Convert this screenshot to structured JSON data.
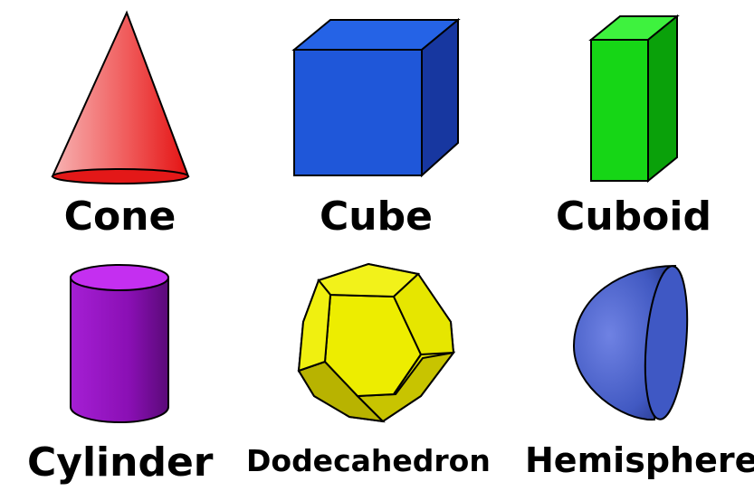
{
  "shapes": [
    {
      "id": "cone",
      "label": "Cone",
      "color": "#e8221f"
    },
    {
      "id": "cube",
      "label": "Cube",
      "color": "#1f57d6"
    },
    {
      "id": "cuboid",
      "label": "Cuboid",
      "color": "#19d219"
    },
    {
      "id": "cylinder",
      "label": "Cylinder",
      "color": "#9b14c6"
    },
    {
      "id": "dodecahedron",
      "label": "Dodecahedron",
      "color": "#e8e800"
    },
    {
      "id": "hemisphere",
      "label": "Hemisphere",
      "color": "#3f55b8"
    }
  ]
}
